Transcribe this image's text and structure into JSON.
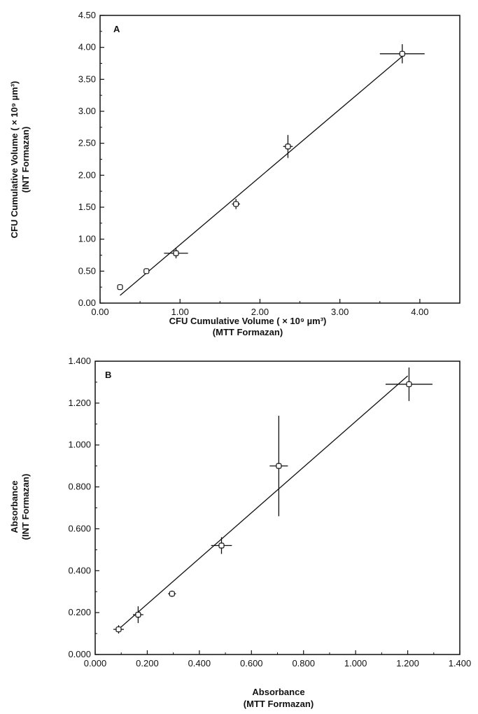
{
  "chart_data": [
    {
      "type": "scatter",
      "panel_label": "A",
      "xlabel": "CFU Cumulative Volume ( × 10⁹ µm³)",
      "xlabel2": "(MTT Formazan)",
      "ylabel": "CFU Cumulative Volume ( × 10⁹ µm³)",
      "ylabel2": "(INT Formazan)",
      "xlim": [
        0,
        4.5
      ],
      "ylim": [
        0,
        4.5
      ],
      "xticks": [
        "0.00",
        "1.00",
        "2.00",
        "3.00",
        "4.00"
      ],
      "yticks": [
        "0.00",
        "0.50",
        "1.00",
        "1.50",
        "2.00",
        "2.50",
        "3.00",
        "3.50",
        "4.00",
        "4.50"
      ],
      "points": [
        {
          "x": 0.25,
          "y": 0.25,
          "xerr": 0.03,
          "yerr": 0.03
        },
        {
          "x": 0.58,
          "y": 0.5,
          "xerr": 0.03,
          "yerr": 0.03
        },
        {
          "x": 0.95,
          "y": 0.78,
          "xerr": 0.15,
          "yerr": 0.08
        },
        {
          "x": 1.7,
          "y": 1.55,
          "xerr": 0.05,
          "yerr": 0.08
        },
        {
          "x": 2.35,
          "y": 2.45,
          "xerr": 0.06,
          "yerr": 0.18
        },
        {
          "x": 3.78,
          "y": 3.9,
          "xerr": 0.28,
          "yerr": 0.15
        }
      ],
      "fit_line": {
        "x": [
          0.25,
          3.8
        ],
        "y": [
          0.12,
          3.88
        ]
      },
      "grid": false
    },
    {
      "type": "scatter",
      "panel_label": "B",
      "xlabel": "Absorbance",
      "xlabel2": "(MTT Formazan)",
      "ylabel": "Absorbance",
      "ylabel2": "(INT Formazan)",
      "xlim": [
        0,
        1.4
      ],
      "ylim": [
        0,
        1.4
      ],
      "xticks": [
        "0.000",
        "0.200",
        "0.400",
        "0.600",
        "0.800",
        "1.000",
        "1.200",
        "1.400"
      ],
      "yticks": [
        "0.000",
        "0.200",
        "0.400",
        "0.600",
        "0.800",
        "1.000",
        "1.200",
        "1.400"
      ],
      "points": [
        {
          "x": 0.09,
          "y": 0.12,
          "xerr": 0.02,
          "yerr": 0.02
        },
        {
          "x": 0.165,
          "y": 0.19,
          "xerr": 0.02,
          "yerr": 0.04
        },
        {
          "x": 0.295,
          "y": 0.29,
          "xerr": 0.015,
          "yerr": 0.015
        },
        {
          "x": 0.485,
          "y": 0.52,
          "xerr": 0.04,
          "yerr": 0.04
        },
        {
          "x": 0.705,
          "y": 0.9,
          "xerr": 0.035,
          "yerr": 0.24
        },
        {
          "x": 1.205,
          "y": 1.29,
          "xerr": 0.09,
          "yerr": 0.08
        }
      ],
      "fit_line": {
        "x": [
          0.08,
          1.2
        ],
        "y": [
          0.11,
          1.33
        ]
      },
      "grid": false
    }
  ]
}
